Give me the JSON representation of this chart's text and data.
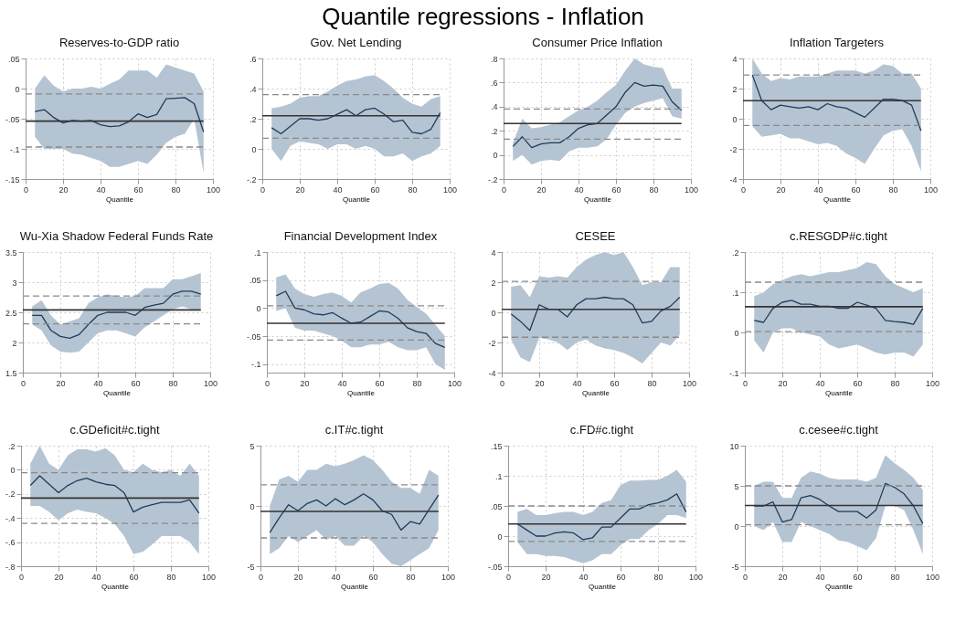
{
  "chart_data": [
    {
      "type": "line",
      "title": "Reserves-to-GDP ratio",
      "xlabel": "Quantile",
      "annotations": [
        "Quantile regressions - Inflation"
      ],
      "grid": true,
      "xlim": [
        0,
        100
      ],
      "xticks": [
        0,
        20,
        40,
        60,
        80,
        100
      ],
      "ylim": [
        -0.15,
        0.05
      ],
      "yticks": [
        {
          "value": 0.05,
          "label": ".05"
        },
        0,
        {
          "value": -0.05,
          "label": "-.05"
        },
        {
          "value": -0.1,
          "label": "-.1"
        },
        {
          "value": -0.15,
          "label": "-.15"
        }
      ],
      "x": [
        5,
        10,
        15,
        20,
        25,
        30,
        35,
        40,
        45,
        50,
        55,
        60,
        65,
        70,
        75,
        80,
        85,
        90,
        95
      ],
      "series": [
        {
          "color": "#1f3b5c",
          "values": [
            -0.038,
            -0.035,
            -0.048,
            -0.057,
            -0.053,
            -0.054,
            -0.053,
            -0.06,
            -0.063,
            -0.062,
            -0.055,
            -0.042,
            -0.048,
            -0.043,
            -0.017,
            -0.016,
            -0.015,
            -0.025,
            -0.072
          ],
          "upper": [
            0,
            0.022,
            0.005,
            -0.005,
            0,
            0,
            0.003,
            0,
            0.008,
            0.015,
            0.03,
            0.03,
            0.03,
            0.018,
            0.04,
            0.035,
            0.03,
            0.025,
            -0.005
          ],
          "lower": [
            -0.08,
            -0.1,
            -0.1,
            -0.1,
            -0.108,
            -0.11,
            -0.115,
            -0.12,
            -0.13,
            -0.13,
            -0.125,
            -0.12,
            -0.125,
            -0.11,
            -0.09,
            -0.08,
            -0.075,
            -0.05,
            -0.14
          ]
        }
      ],
      "ref_lines": [
        {
          "axis": "y",
          "value": -0.054,
          "color": "#333333",
          "line_style": "solid"
        },
        {
          "axis": "y",
          "value": -0.009,
          "color": "#8a8a8a",
          "line_style": "dashed"
        },
        {
          "axis": "y",
          "value": -0.097,
          "color": "#8a8a8a",
          "line_style": "dashed"
        }
      ]
    },
    {
      "type": "line",
      "title": "Gov. Net Lending",
      "xlabel": "Quantile",
      "grid": true,
      "xlim": [
        0,
        100
      ],
      "xticks": [
        0,
        20,
        40,
        60,
        80,
        100
      ],
      "ylim": [
        -0.2,
        0.6
      ],
      "yticks": [
        {
          "value": 0.6,
          "label": ".6"
        },
        {
          "value": 0.4,
          "label": ".4"
        },
        {
          "value": 0.2,
          "label": ".2"
        },
        0,
        {
          "value": -0.2,
          "label": "-.2"
        }
      ],
      "x": [
        5,
        10,
        15,
        20,
        25,
        30,
        35,
        40,
        45,
        50,
        55,
        60,
        65,
        70,
        75,
        80,
        85,
        90,
        95
      ],
      "series": [
        {
          "color": "#1f3b5c",
          "values": [
            0.14,
            0.1,
            0.15,
            0.2,
            0.2,
            0.19,
            0.2,
            0.23,
            0.26,
            0.22,
            0.26,
            0.27,
            0.23,
            0.18,
            0.19,
            0.11,
            0.1,
            0.13,
            0.24
          ],
          "upper": [
            0.27,
            0.28,
            0.3,
            0.34,
            0.35,
            0.35,
            0.38,
            0.42,
            0.45,
            0.46,
            0.48,
            0.49,
            0.45,
            0.4,
            0.34,
            0.3,
            0.28,
            0.33,
            0.35
          ],
          "lower": [
            0,
            -0.08,
            0.02,
            0.05,
            0.04,
            0.03,
            0,
            0.03,
            0.03,
            0,
            0.02,
            0,
            -0.05,
            -0.05,
            -0.03,
            -0.08,
            -0.05,
            -0.03,
            0.02
          ]
        }
      ],
      "ref_lines": [
        {
          "axis": "y",
          "value": 0.22,
          "color": "#333333",
          "line_style": "solid"
        },
        {
          "axis": "y",
          "value": 0.36,
          "color": "#8a8a8a",
          "line_style": "dashed"
        },
        {
          "axis": "y",
          "value": 0.07,
          "color": "#8a8a8a",
          "line_style": "dashed"
        }
      ]
    },
    {
      "type": "line",
      "title": "Consumer Price Inflation",
      "xlabel": "Quantile",
      "grid": true,
      "xlim": [
        0,
        100
      ],
      "xticks": [
        0,
        20,
        40,
        60,
        80,
        100
      ],
      "ylim": [
        -0.2,
        0.8
      ],
      "yticks": [
        {
          "value": 0.8,
          "label": ".8"
        },
        {
          "value": 0.6,
          "label": ".6"
        },
        {
          "value": 0.4,
          "label": ".4"
        },
        {
          "value": 0.2,
          "label": ".2"
        },
        0,
        {
          "value": -0.2,
          "label": "-.2"
        }
      ],
      "x": [
        5,
        10,
        15,
        20,
        25,
        30,
        35,
        40,
        45,
        50,
        55,
        60,
        65,
        70,
        75,
        80,
        85,
        90,
        95
      ],
      "series": [
        {
          "color": "#1f3b5c",
          "values": [
            0.07,
            0.15,
            0.06,
            0.09,
            0.1,
            0.1,
            0.15,
            0.22,
            0.25,
            0.26,
            0.33,
            0.4,
            0.52,
            0.6,
            0.57,
            0.58,
            0.57,
            0.44,
            0.37
          ],
          "upper": [
            0.1,
            0.3,
            0.22,
            0.23,
            0.25,
            0.27,
            0.32,
            0.37,
            0.4,
            0.45,
            0.52,
            0.58,
            0.7,
            0.8,
            0.75,
            0.73,
            0.72,
            0.55,
            0.55
          ],
          "lower": [
            -0.05,
            0,
            -0.08,
            -0.05,
            -0.04,
            -0.05,
            0.03,
            0.06,
            0.06,
            0.07,
            0.13,
            0.25,
            0.35,
            0.4,
            0.43,
            0.45,
            0.47,
            0.32,
            0.3
          ]
        }
      ],
      "ref_lines": [
        {
          "axis": "y",
          "value": 0.26,
          "color": "#333333",
          "line_style": "solid"
        },
        {
          "axis": "y",
          "value": 0.38,
          "color": "#8a8a8a",
          "line_style": "dashed"
        },
        {
          "axis": "y",
          "value": 0.13,
          "color": "#8a8a8a",
          "line_style": "dashed"
        }
      ]
    },
    {
      "type": "line",
      "title": "Inflation Targeters",
      "xlabel": "Quantile",
      "grid": true,
      "xlim": [
        0,
        100
      ],
      "xticks": [
        0,
        20,
        40,
        60,
        80,
        100
      ],
      "ylim": [
        -4,
        4
      ],
      "yticks": [
        4,
        2,
        0,
        -2,
        -4
      ],
      "x": [
        5,
        10,
        15,
        20,
        25,
        30,
        35,
        40,
        45,
        50,
        55,
        60,
        65,
        70,
        75,
        80,
        85,
        90,
        95
      ],
      "series": [
        {
          "color": "#1f3b5c",
          "values": [
            2.9,
            1.2,
            0.6,
            0.9,
            0.8,
            0.7,
            0.8,
            0.6,
            1.0,
            0.8,
            0.7,
            0.4,
            0.1,
            0.7,
            1.3,
            1.3,
            1.2,
            0.9,
            -0.8
          ],
          "upper": [
            4.0,
            3.0,
            2.5,
            2.7,
            2.6,
            2.8,
            2.8,
            2.8,
            3.0,
            3.2,
            3.2,
            3.2,
            3.0,
            3.2,
            3.6,
            3.5,
            3.0,
            3.0,
            2.0
          ],
          "lower": [
            -0.5,
            -1.2,
            -1.1,
            -1.0,
            -1.3,
            -1.3,
            -1.5,
            -1.7,
            -1.6,
            -1.8,
            -2.3,
            -2.6,
            -3.0,
            -2.0,
            -1.1,
            -0.8,
            -0.7,
            -1.8,
            -3.5
          ]
        }
      ],
      "ref_lines": [
        {
          "axis": "y",
          "value": 1.2,
          "color": "#333333",
          "line_style": "solid"
        },
        {
          "axis": "y",
          "value": 2.9,
          "color": "#8a8a8a",
          "line_style": "dashed"
        },
        {
          "axis": "y",
          "value": -0.45,
          "color": "#8a8a8a",
          "line_style": "dashed"
        }
      ]
    },
    {
      "type": "line",
      "title": "Wu-Xia Shadow Federal Funds Rate",
      "xlabel": "Quantile",
      "grid": true,
      "xlim": [
        0,
        100
      ],
      "xticks": [
        0,
        20,
        40,
        60,
        80,
        100
      ],
      "ylim": [
        1.5,
        3.5
      ],
      "yticks": [
        3.5,
        3,
        2.5,
        2,
        1.5
      ],
      "x": [
        5,
        10,
        15,
        20,
        25,
        30,
        35,
        40,
        45,
        50,
        55,
        60,
        65,
        70,
        75,
        80,
        85,
        90,
        95
      ],
      "series": [
        {
          "color": "#1f3b5c",
          "values": [
            2.45,
            2.45,
            2.2,
            2.1,
            2.07,
            2.13,
            2.3,
            2.45,
            2.5,
            2.5,
            2.5,
            2.45,
            2.58,
            2.62,
            2.65,
            2.8,
            2.85,
            2.85,
            2.8
          ],
          "upper": [
            2.6,
            2.7,
            2.45,
            2.3,
            2.35,
            2.4,
            2.65,
            2.75,
            2.8,
            2.77,
            2.75,
            2.77,
            2.9,
            2.9,
            2.9,
            3.05,
            3.05,
            3.1,
            3.15
          ],
          "lower": [
            2.3,
            2.2,
            1.95,
            1.85,
            1.83,
            1.85,
            2.0,
            2.15,
            2.2,
            2.2,
            2.15,
            2.1,
            2.25,
            2.35,
            2.45,
            2.55,
            2.6,
            2.55,
            2.55
          ]
        }
      ],
      "ref_lines": [
        {
          "axis": "y",
          "value": 2.54,
          "color": "#333333",
          "line_style": "solid"
        },
        {
          "axis": "y",
          "value": 2.77,
          "color": "#8a8a8a",
          "line_style": "dashed"
        },
        {
          "axis": "y",
          "value": 2.31,
          "color": "#8a8a8a",
          "line_style": "dashed"
        }
      ]
    },
    {
      "type": "line",
      "title": "Financial Development Index",
      "xlabel": "Quantile",
      "grid": true,
      "xlim": [
        0,
        100
      ],
      "xticks": [
        0,
        20,
        40,
        60,
        80,
        100
      ],
      "ylim": [
        -0.115,
        0.1
      ],
      "yticks": [
        {
          "value": 0.1,
          "label": ".1"
        },
        {
          "value": 0.05,
          "label": ".05"
        },
        0,
        {
          "value": -0.05,
          "label": "-.05"
        },
        {
          "value": -0.1,
          "label": "-.1"
        }
      ],
      "x": [
        5,
        10,
        15,
        20,
        25,
        30,
        35,
        40,
        45,
        50,
        55,
        60,
        65,
        70,
        75,
        80,
        85,
        90,
        95
      ],
      "series": [
        {
          "color": "#1f3b5c",
          "values": [
            0.022,
            0.03,
            0,
            -0.003,
            -0.01,
            -0.012,
            -0.008,
            -0.018,
            -0.027,
            -0.025,
            -0.015,
            -0.005,
            -0.007,
            -0.018,
            -0.035,
            -0.042,
            -0.045,
            -0.063,
            -0.07
          ],
          "upper": [
            0.055,
            0.06,
            0.035,
            0.025,
            0.02,
            0.025,
            0.028,
            0.022,
            0.01,
            0.028,
            0.035,
            0.043,
            0.045,
            0.035,
            0.015,
            0.002,
            -0.01,
            -0.03,
            -0.05
          ],
          "lower": [
            -0.005,
            0,
            -0.035,
            -0.04,
            -0.04,
            -0.045,
            -0.05,
            -0.058,
            -0.07,
            -0.07,
            -0.065,
            -0.065,
            -0.06,
            -0.07,
            -0.075,
            -0.075,
            -0.07,
            -0.1,
            -0.11
          ]
        }
      ],
      "ref_lines": [
        {
          "axis": "y",
          "value": -0.027,
          "color": "#333333",
          "line_style": "solid"
        },
        {
          "axis": "y",
          "value": 0.004,
          "color": "#8a8a8a",
          "line_style": "dashed"
        },
        {
          "axis": "y",
          "value": -0.057,
          "color": "#8a8a8a",
          "line_style": "dashed"
        }
      ]
    },
    {
      "type": "line",
      "title": "CESEE",
      "xlabel": "Quantile",
      "grid": true,
      "xlim": [
        0,
        100
      ],
      "xticks": [
        0,
        20,
        40,
        60,
        80,
        100
      ],
      "ylim": [
        -4,
        4
      ],
      "yticks": [
        4,
        2,
        0,
        -2,
        -4
      ],
      "x": [
        5,
        10,
        15,
        20,
        25,
        30,
        35,
        40,
        45,
        50,
        55,
        60,
        65,
        70,
        75,
        80,
        85,
        90,
        95
      ],
      "series": [
        {
          "color": "#1f3b5c",
          "values": [
            -0.1,
            -0.6,
            -1.2,
            0.5,
            0.2,
            0.2,
            -0.3,
            0.5,
            0.9,
            0.9,
            1.0,
            0.9,
            0.9,
            0.5,
            -0.7,
            -0.6,
            0.1,
            0.4,
            1.0
          ],
          "upper": [
            1.7,
            1.8,
            1.0,
            2.4,
            2.3,
            2.4,
            2.3,
            3.0,
            3.5,
            3.8,
            4.0,
            3.8,
            4.0,
            3.0,
            1.8,
            2.0,
            2.0,
            3.0,
            3.0
          ],
          "lower": [
            -1.8,
            -3.0,
            -3.3,
            -1.7,
            -1.8,
            -2.0,
            -2.5,
            -2.0,
            -1.8,
            -2.2,
            -2.4,
            -2.5,
            -2.7,
            -3.0,
            -3.4,
            -2.7,
            -2.0,
            -2.2,
            -1.5
          ]
        }
      ],
      "ref_lines": [
        {
          "axis": "y",
          "value": 0.2,
          "color": "#333333",
          "line_style": "solid"
        },
        {
          "axis": "y",
          "value": 2.05,
          "color": "#8a8a8a",
          "line_style": "dashed"
        },
        {
          "axis": "y",
          "value": -1.65,
          "color": "#8a8a8a",
          "line_style": "dashed"
        }
      ]
    },
    {
      "type": "line",
      "title": "c.RESGDP#c.tight",
      "xlabel": "Quantile",
      "grid": true,
      "xlim": [
        0,
        100
      ],
      "xticks": [
        0,
        20,
        40,
        60,
        80,
        100
      ],
      "ylim": [
        -0.1,
        0.2
      ],
      "yticks": [
        {
          "value": 0.2,
          "label": ".2"
        },
        {
          "value": 0.1,
          "label": ".1"
        },
        0,
        {
          "value": -0.1,
          "label": "-.1"
        }
      ],
      "x": [
        5,
        10,
        15,
        20,
        25,
        30,
        35,
        40,
        45,
        50,
        55,
        60,
        65,
        70,
        75,
        80,
        85,
        90,
        95
      ],
      "series": [
        {
          "color": "#1f3b5c",
          "values": [
            0.03,
            0.025,
            0.06,
            0.075,
            0.08,
            0.07,
            0.07,
            0.065,
            0.065,
            0.06,
            0.06,
            0.075,
            0.068,
            0.06,
            0.03,
            0.027,
            0.025,
            0.02,
            0.06
          ],
          "upper": [
            0.09,
            0.1,
            0.12,
            0.13,
            0.14,
            0.145,
            0.14,
            0.145,
            0.15,
            0.15,
            0.155,
            0.16,
            0.175,
            0.17,
            0.14,
            0.12,
            0.11,
            0.1,
            0.11
          ],
          "lower": [
            -0.02,
            -0.05,
            0,
            0.01,
            0.01,
            0,
            -0.005,
            -0.01,
            -0.03,
            -0.04,
            -0.035,
            -0.03,
            -0.04,
            -0.05,
            -0.055,
            -0.05,
            -0.05,
            -0.06,
            -0.03
          ]
        }
      ],
      "ref_lines": [
        {
          "axis": "y",
          "value": 0.064,
          "color": "#333333",
          "line_style": "solid"
        },
        {
          "axis": "y",
          "value": 0.125,
          "color": "#8a8a8a",
          "line_style": "dashed"
        },
        {
          "axis": "y",
          "value": 0.002,
          "color": "#8a8a8a",
          "line_style": "dashed"
        }
      ]
    },
    {
      "type": "line",
      "title": "c.GDeficit#c.tight",
      "xlabel": "Quantile",
      "grid": true,
      "xlim": [
        0,
        100
      ],
      "xticks": [
        0,
        20,
        40,
        60,
        80,
        100
      ],
      "ylim": [
        -0.8,
        0.2
      ],
      "yticks": [
        {
          "value": 0.2,
          "label": ".2"
        },
        0,
        {
          "value": -0.2,
          "label": "-.2"
        },
        {
          "value": -0.4,
          "label": "-.4"
        },
        {
          "value": -0.6,
          "label": "-.6"
        },
        {
          "value": -0.8,
          "label": "-.8"
        }
      ],
      "x": [
        5,
        10,
        15,
        20,
        25,
        30,
        35,
        40,
        45,
        50,
        55,
        60,
        65,
        70,
        75,
        80,
        85,
        90,
        95
      ],
      "series": [
        {
          "color": "#1f3b5c",
          "values": [
            -0.13,
            -0.05,
            -0.12,
            -0.19,
            -0.13,
            -0.09,
            -0.07,
            -0.1,
            -0.12,
            -0.13,
            -0.19,
            -0.35,
            -0.31,
            -0.29,
            -0.27,
            -0.27,
            -0.27,
            -0.25,
            -0.36
          ],
          "upper": [
            0.05,
            0.2,
            0.05,
            0,
            0.12,
            0.17,
            0.17,
            0.15,
            0.18,
            0.12,
            0,
            -0.02,
            0.05,
            0,
            -0.02,
            0,
            -0.05,
            0.05,
            -0.05
          ],
          "lower": [
            -0.3,
            -0.3,
            -0.35,
            -0.42,
            -0.36,
            -0.33,
            -0.35,
            -0.36,
            -0.4,
            -0.45,
            -0.55,
            -0.7,
            -0.68,
            -0.62,
            -0.55,
            -0.55,
            -0.55,
            -0.6,
            -0.7
          ]
        }
      ],
      "ref_lines": [
        {
          "axis": "y",
          "value": -0.235,
          "color": "#333333",
          "line_style": "solid"
        },
        {
          "axis": "y",
          "value": -0.025,
          "color": "#8a8a8a",
          "line_style": "dashed"
        },
        {
          "axis": "y",
          "value": -0.445,
          "color": "#8a8a8a",
          "line_style": "dashed"
        }
      ]
    },
    {
      "type": "line",
      "title": "c.IT#c.tight",
      "xlabel": "Quantile",
      "grid": true,
      "xlim": [
        0,
        100
      ],
      "xticks": [
        0,
        20,
        40,
        60,
        80,
        100
      ],
      "ylim": [
        -5,
        5
      ],
      "yticks": [
        5,
        0,
        -5
      ],
      "x": [
        5,
        10,
        15,
        20,
        25,
        30,
        35,
        40,
        45,
        50,
        55,
        60,
        65,
        70,
        75,
        80,
        85,
        90,
        95
      ],
      "series": [
        {
          "color": "#1f3b5c",
          "values": [
            -2.2,
            -1.0,
            0.1,
            -0.4,
            0.2,
            0.5,
            0,
            0.6,
            0.1,
            0.5,
            1.0,
            0.5,
            -0.4,
            -0.7,
            -2.0,
            -1.3,
            -1.5,
            -0.3,
            0.9
          ],
          "upper": [
            0,
            2.2,
            2.5,
            2.0,
            3.0,
            3.0,
            3.5,
            3.3,
            3.5,
            3.8,
            4.2,
            3.8,
            3.0,
            2.0,
            1.5,
            1.5,
            1.0,
            3.0,
            2.5
          ],
          "lower": [
            -4.0,
            -3.5,
            -2.5,
            -3.0,
            -2.5,
            -2.0,
            -2.8,
            -2.5,
            -3.3,
            -3.3,
            -2.5,
            -3.0,
            -4.0,
            -4.8,
            -5.0,
            -4.5,
            -4.0,
            -3.5,
            -2.0
          ]
        }
      ],
      "ref_lines": [
        {
          "axis": "y",
          "value": -0.45,
          "color": "#333333",
          "line_style": "solid"
        },
        {
          "axis": "y",
          "value": 1.75,
          "color": "#8a8a8a",
          "line_style": "dashed"
        },
        {
          "axis": "y",
          "value": -2.65,
          "color": "#8a8a8a",
          "line_style": "dashed"
        }
      ]
    },
    {
      "type": "line",
      "title": "c.FD#c.tight",
      "xlabel": "Quantile",
      "grid": true,
      "xlim": [
        0,
        100
      ],
      "xticks": [
        0,
        20,
        40,
        60,
        80,
        100
      ],
      "ylim": [
        -0.05,
        0.15
      ],
      "yticks": [
        {
          "value": 0.15,
          "label": ".15"
        },
        {
          "value": 0.1,
          "label": ".1"
        },
        {
          "value": 0.05,
          "label": ".05"
        },
        0,
        {
          "value": -0.05,
          "label": "-.05"
        }
      ],
      "x": [
        5,
        10,
        15,
        20,
        25,
        30,
        35,
        40,
        45,
        50,
        55,
        60,
        65,
        70,
        75,
        80,
        85,
        90,
        95
      ],
      "series": [
        {
          "color": "#1f3b5c",
          "values": [
            0.02,
            0.01,
            0,
            0,
            0.005,
            0.007,
            0.005,
            -0.006,
            -0.003,
            0.015,
            0.015,
            0.03,
            0.045,
            0.045,
            0.052,
            0.055,
            0.06,
            0.07,
            0.04
          ],
          "upper": [
            0.04,
            0.045,
            0.035,
            0.035,
            0.038,
            0.04,
            0.04,
            0.035,
            0.04,
            0.055,
            0.06,
            0.085,
            0.092,
            0.092,
            0.093,
            0.093,
            0.1,
            0.11,
            0.09
          ],
          "lower": [
            -0.01,
            -0.03,
            -0.03,
            -0.033,
            -0.033,
            -0.035,
            -0.04,
            -0.045,
            -0.04,
            -0.03,
            -0.03,
            -0.015,
            -0.005,
            -0.005,
            0.01,
            0.02,
            0.035,
            0.035,
            0.03
          ]
        }
      ],
      "ref_lines": [
        {
          "axis": "y",
          "value": 0.02,
          "color": "#333333",
          "line_style": "solid"
        },
        {
          "axis": "y",
          "value": 0.05,
          "color": "#8a8a8a",
          "line_style": "dashed"
        },
        {
          "axis": "y",
          "value": -0.009,
          "color": "#8a8a8a",
          "line_style": "dashed"
        }
      ]
    },
    {
      "type": "line",
      "title": "c.cesee#c.tight",
      "xlabel": "Quantile",
      "grid": true,
      "xlim": [
        0,
        100
      ],
      "xticks": [
        0,
        20,
        40,
        60,
        80,
        100
      ],
      "ylim": [
        -5,
        10
      ],
      "yticks": [
        10,
        5,
        0,
        -5
      ],
      "x": [
        5,
        10,
        15,
        20,
        25,
        30,
        35,
        40,
        45,
        50,
        55,
        60,
        65,
        70,
        75,
        80,
        85,
        90,
        95
      ],
      "series": [
        {
          "color": "#1f3b5c",
          "values": [
            2.5,
            2.5,
            3.0,
            0.5,
            0.8,
            3.5,
            3.8,
            3.3,
            2.5,
            1.8,
            1.8,
            1.8,
            1.0,
            2.0,
            5.3,
            4.8,
            4.0,
            2.5,
            0.3
          ],
          "upper": [
            5.0,
            5.5,
            5.5,
            3.5,
            3.5,
            6.0,
            6.8,
            6.5,
            6.0,
            5.8,
            5.8,
            5.8,
            5.5,
            6.0,
            8.8,
            7.8,
            7.0,
            6.0,
            4.5
          ],
          "lower": [
            0,
            -0.5,
            0.5,
            -2.0,
            -2.0,
            0.5,
            0,
            -0.5,
            -1.0,
            -1.8,
            -2.0,
            -2.5,
            -3.0,
            -1.5,
            2.5,
            2.5,
            2.0,
            -0.5,
            -3.5
          ]
        }
      ],
      "ref_lines": [
        {
          "axis": "y",
          "value": 2.55,
          "color": "#333333",
          "line_style": "solid"
        },
        {
          "axis": "y",
          "value": 5.0,
          "color": "#8a8a8a",
          "line_style": "dashed"
        },
        {
          "axis": "y",
          "value": 0.15,
          "color": "#8a8a8a",
          "line_style": "dashed"
        }
      ]
    }
  ]
}
